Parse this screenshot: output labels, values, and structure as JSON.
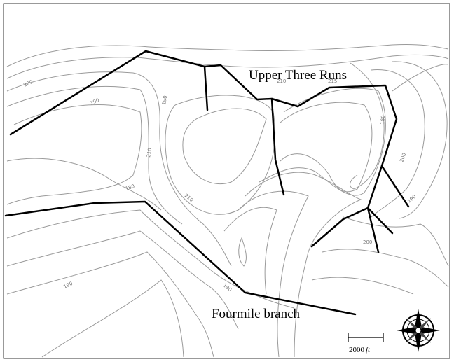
{
  "streams": {
    "upper": "Upper Three Runs",
    "lower": "Fourmile branch"
  },
  "scale_bar": {
    "distance": "2000",
    "unit": "ft"
  },
  "contour_labels": [
    "200",
    "190",
    "190",
    "210",
    "180",
    "210",
    "190",
    "190",
    "210",
    "215",
    "180",
    "200",
    "190",
    "200"
  ]
}
